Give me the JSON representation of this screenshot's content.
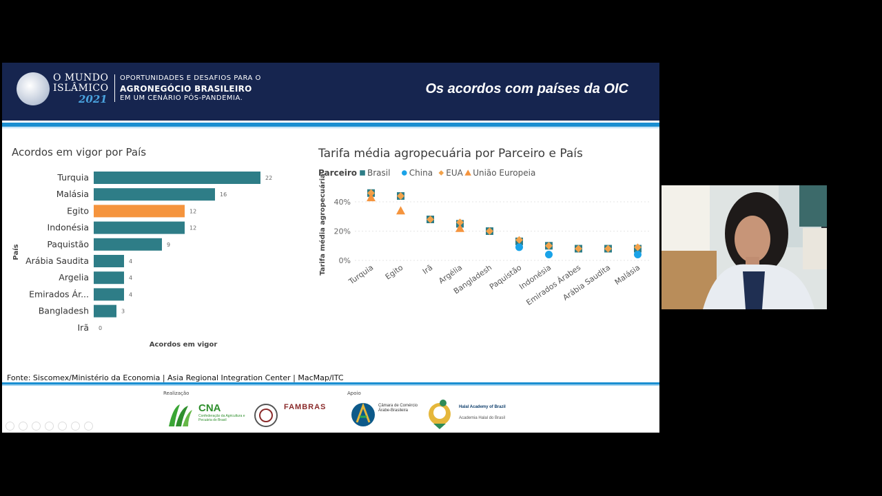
{
  "header": {
    "brand_line1": "O MUNDO",
    "brand_line2": "ISLÂMICO",
    "brand_year": "2021",
    "tagline1": "OPORTUNIDADES E DESAFIOS PARA O",
    "tagline2": "AGRONEGÓCIO BRASILEIRO",
    "tagline3": "EM UM CENÁRIO PÓS-PANDEMIA.",
    "slide_title": "Os acordos com países da OIC"
  },
  "bar_chart_title": "Acordos em vigor por País",
  "scatter_chart_title": "Tarifa média agropecuária por Parceiro e País",
  "source": "Fonte: Siscomex/Ministério da Economia | Asia Regional Integration Center | MacMap/ITC",
  "sponsors": {
    "realizacao_label": "Realização",
    "apoio_label": "Apoio",
    "cna_name": "CNA",
    "cna_sub": "Confederação da Agricultura e Pecuária do Brasil",
    "fambras_name": "FAMBRAS",
    "camara_name": "Câmara de Comércio Árabe-Brasileira",
    "halal_name": "Halal Academy of Brazil",
    "halal_sub": "Academia Halal do Brasil"
  },
  "colors": {
    "header_bg": "#16254f",
    "accent_blue": "#1b8fd1",
    "teal": "#2e7d87",
    "highlight_orange": "#f5943d",
    "china_blue": "#1aa3e8",
    "eua_orange": "#f2a24a"
  },
  "chart_data": [
    {
      "type": "bar",
      "orientation": "horizontal",
      "title": "Acordos em vigor por País",
      "xlabel": "Acordos em vigor",
      "ylabel": "País",
      "categories": [
        "Turquia",
        "Malásia",
        "Egito",
        "Indonésia",
        "Paquistão",
        "Arábia Saudita",
        "Argelia",
        "Emirados Ár...",
        "Bangladesh",
        "Irã"
      ],
      "values": [
        22,
        16,
        12,
        12,
        9,
        4,
        4,
        4,
        3,
        0
      ],
      "highlight": "Egito",
      "xlim": [
        0,
        22
      ]
    },
    {
      "type": "scatter",
      "title": "Tarifa média agropecuária por Parceiro e País",
      "ylabel": "Tarifa média agropecuária",
      "legend_title": "Parceiro",
      "legend_position": "top-left",
      "categories": [
        "Turquia",
        "Egito",
        "Irã",
        "Argélia",
        "Bangladesh",
        "Paquistão",
        "Indonésia",
        "Emirados Árabes",
        "Arábia Saudita",
        "Malásia"
      ],
      "yticks": [
        "0%",
        "20%",
        "40%"
      ],
      "ylim": [
        0,
        48
      ],
      "grid": true,
      "series": [
        {
          "name": "Brasil",
          "marker": "square",
          "color": "#2e7d87",
          "values": [
            46,
            44,
            28,
            25,
            20,
            13,
            10,
            8,
            8,
            8
          ]
        },
        {
          "name": "China",
          "marker": "circle",
          "color": "#1aa3e8",
          "values": [
            null,
            null,
            null,
            null,
            null,
            9,
            4,
            null,
            null,
            4
          ]
        },
        {
          "name": "EUA",
          "marker": "diamond",
          "color": "#f2a24a",
          "values": [
            46,
            44,
            28,
            26,
            20,
            14,
            10,
            8,
            8,
            9
          ]
        },
        {
          "name": "União Europeia",
          "marker": "triangle",
          "color": "#f5943d",
          "values": [
            43,
            34,
            null,
            22,
            null,
            null,
            null,
            null,
            null,
            null
          ]
        }
      ]
    }
  ]
}
